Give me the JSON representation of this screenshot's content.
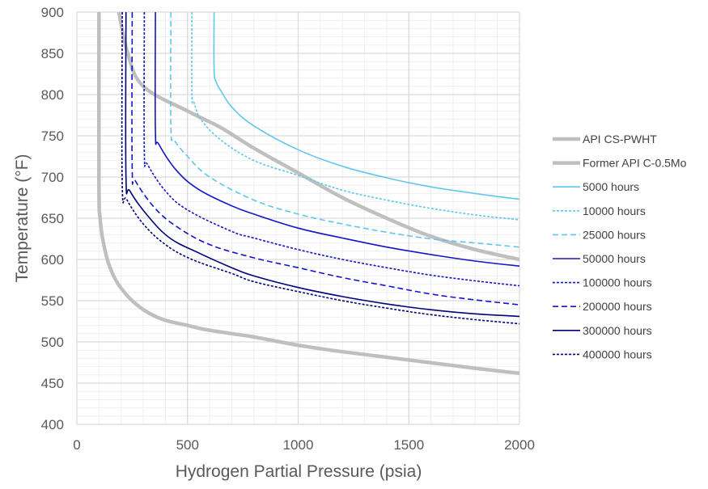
{
  "chart_data": {
    "type": "line",
    "title": "",
    "xlabel": "Hydrogen Partial Pressure (psia)",
    "ylabel": "Temperature (°F)",
    "xlim": [
      0,
      2000
    ],
    "ylim": [
      400,
      900
    ],
    "x_ticks": [
      0,
      500,
      1000,
      1500,
      2000
    ],
    "y_ticks": [
      400,
      450,
      500,
      550,
      600,
      650,
      700,
      750,
      800,
      850,
      900
    ],
    "x_minor_step": 100,
    "y_minor_step": 10,
    "grid": true,
    "legend_position": "right",
    "series": [
      {
        "name": "API CS-PWHT",
        "color": "#bfbfbf",
        "style": "solid",
        "weight": "thick",
        "points": [
          [
            100,
            900
          ],
          [
            100,
            690
          ],
          [
            105,
            650
          ],
          [
            120,
            620
          ],
          [
            150,
            590
          ],
          [
            200,
            565
          ],
          [
            280,
            543
          ],
          [
            380,
            528
          ],
          [
            500,
            520
          ],
          [
            580,
            515
          ],
          [
            700,
            510
          ],
          [
            800,
            506
          ],
          [
            1000,
            496
          ],
          [
            1200,
            488
          ],
          [
            1500,
            478
          ],
          [
            1800,
            468
          ],
          [
            2000,
            462
          ]
        ]
      },
      {
        "name": "Former API C-0.5Mo",
        "color": "#bfbfbf",
        "style": "solid",
        "weight": "thick",
        "points": [
          [
            190,
            900
          ],
          [
            230,
            850
          ],
          [
            300,
            810
          ],
          [
            500,
            780
          ],
          [
            650,
            760
          ],
          [
            800,
            735
          ],
          [
            1000,
            705
          ],
          [
            1200,
            675
          ],
          [
            1400,
            650
          ],
          [
            1600,
            628
          ],
          [
            1800,
            612
          ],
          [
            2000,
            600
          ]
        ]
      },
      {
        "name": "5000 hours",
        "color": "#5fc7ef",
        "style": "solid",
        "weight": "thin",
        "points": [
          [
            620,
            900
          ],
          [
            620,
            830
          ],
          [
            630,
            815
          ],
          [
            650,
            805
          ],
          [
            700,
            785
          ],
          [
            800,
            762
          ],
          [
            1000,
            733
          ],
          [
            1200,
            713
          ],
          [
            1400,
            699
          ],
          [
            1600,
            688
          ],
          [
            1800,
            680
          ],
          [
            2000,
            673
          ]
        ]
      },
      {
        "name": "10000 hours",
        "color": "#5fc7ef",
        "style": "dash-fine",
        "weight": "thin",
        "points": [
          [
            520,
            900
          ],
          [
            520,
            800
          ],
          [
            530,
            790
          ],
          [
            560,
            770
          ],
          [
            650,
            745
          ],
          [
            800,
            720
          ],
          [
            1000,
            702
          ],
          [
            1200,
            684
          ],
          [
            1400,
            672
          ],
          [
            1600,
            662
          ],
          [
            1800,
            654
          ],
          [
            2000,
            648
          ]
        ]
      },
      {
        "name": "25000 hours",
        "color": "#5fc7ef",
        "style": "dash",
        "weight": "thin",
        "points": [
          [
            425,
            900
          ],
          [
            425,
            760
          ],
          [
            440,
            745
          ],
          [
            500,
            725
          ],
          [
            600,
            700
          ],
          [
            800,
            672
          ],
          [
            1000,
            655
          ],
          [
            1200,
            643
          ],
          [
            1400,
            633
          ],
          [
            1600,
            625
          ],
          [
            1800,
            620
          ],
          [
            2000,
            615
          ]
        ]
      },
      {
        "name": "50000 hours",
        "color": "#1414c8",
        "style": "solid",
        "weight": "thin",
        "points": [
          [
            355,
            900
          ],
          [
            355,
            755
          ],
          [
            370,
            740
          ],
          [
            450,
            708
          ],
          [
            550,
            685
          ],
          [
            700,
            665
          ],
          [
            800,
            655
          ],
          [
            1000,
            638
          ],
          [
            1200,
            626
          ],
          [
            1400,
            615
          ],
          [
            1600,
            606
          ],
          [
            1800,
            598
          ],
          [
            2000,
            592
          ]
        ]
      },
      {
        "name": "100000 hours",
        "color": "#1414c8",
        "style": "dash-fine",
        "weight": "thin",
        "points": [
          [
            305,
            900
          ],
          [
            305,
            730
          ],
          [
            320,
            715
          ],
          [
            400,
            683
          ],
          [
            500,
            660
          ],
          [
            700,
            634
          ],
          [
            800,
            626
          ],
          [
            1000,
            612
          ],
          [
            1200,
            600
          ],
          [
            1400,
            590
          ],
          [
            1600,
            581
          ],
          [
            1800,
            574
          ],
          [
            2000,
            568
          ]
        ]
      },
      {
        "name": "200000 hours",
        "color": "#1414c8",
        "style": "dash",
        "weight": "thin",
        "points": [
          [
            250,
            900
          ],
          [
            250,
            710
          ],
          [
            265,
            695
          ],
          [
            350,
            663
          ],
          [
            450,
            640
          ],
          [
            600,
            618
          ],
          [
            800,
            602
          ],
          [
            1000,
            590
          ],
          [
            1200,
            578
          ],
          [
            1400,
            568
          ],
          [
            1600,
            558
          ],
          [
            1800,
            551
          ],
          [
            2000,
            545
          ]
        ]
      },
      {
        "name": "300000 hours",
        "color": "#00007a",
        "style": "solid",
        "weight": "thin",
        "points": [
          [
            222,
            900
          ],
          [
            222,
            700
          ],
          [
            240,
            683
          ],
          [
            320,
            653
          ],
          [
            420,
            626
          ],
          [
            550,
            608
          ],
          [
            700,
            590
          ],
          [
            800,
            580
          ],
          [
            1000,
            566
          ],
          [
            1200,
            555
          ],
          [
            1400,
            546
          ],
          [
            1600,
            539
          ],
          [
            1800,
            534
          ],
          [
            2000,
            531
          ]
        ]
      },
      {
        "name": "400000 hours",
        "color": "#00007a",
        "style": "dash-fine",
        "weight": "thin",
        "points": [
          [
            205,
            900
          ],
          [
            205,
            690
          ],
          [
            225,
            673
          ],
          [
            300,
            643
          ],
          [
            400,
            618
          ],
          [
            520,
            600
          ],
          [
            700,
            583
          ],
          [
            800,
            573
          ],
          [
            1000,
            561
          ],
          [
            1200,
            550
          ],
          [
            1400,
            541
          ],
          [
            1600,
            533
          ],
          [
            1800,
            527
          ],
          [
            2000,
            522
          ]
        ]
      }
    ]
  }
}
